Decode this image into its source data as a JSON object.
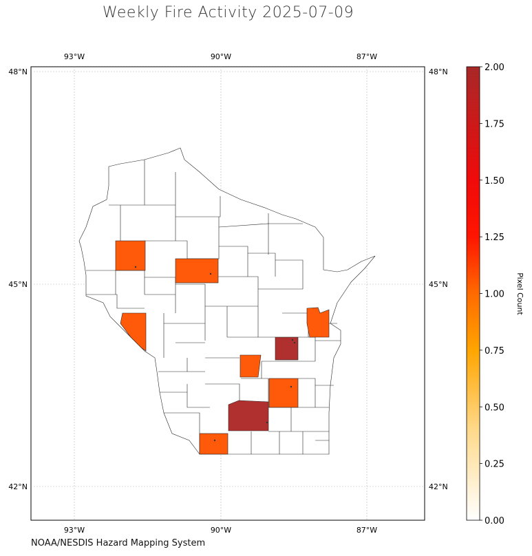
{
  "title": "Weekly Fire Activity 2025-07-09",
  "source": "NOAA/NESDIS Hazard Mapping System",
  "colorbar": {
    "label": "Pixel Count",
    "min": 0,
    "max": 2,
    "ticks": [
      "0.00",
      "0.25",
      "0.50",
      "0.75",
      "1.00",
      "1.25",
      "1.50",
      "1.75",
      "2.00"
    ]
  },
  "axes": {
    "lon_ticks": [
      "93°W",
      "90°W",
      "87°W"
    ],
    "lat_ticks": [
      "48°N",
      "45°N",
      "42°N"
    ]
  },
  "colors": {
    "count_1": "#ff5a0a",
    "count_2": "#b03030"
  },
  "highlighted_counties": [
    {
      "id": "polk-area",
      "count": 1
    },
    {
      "id": "clark-area",
      "count": 1
    },
    {
      "id": "trempealeau-area",
      "count": 1
    },
    {
      "id": "brown-area",
      "count": 1
    },
    {
      "id": "calumet-area",
      "count": 2
    },
    {
      "id": "marquette-area",
      "count": 1
    },
    {
      "id": "dodge-area",
      "count": 1
    },
    {
      "id": "dane-area",
      "count": 2
    },
    {
      "id": "green-area",
      "count": 1
    }
  ]
}
